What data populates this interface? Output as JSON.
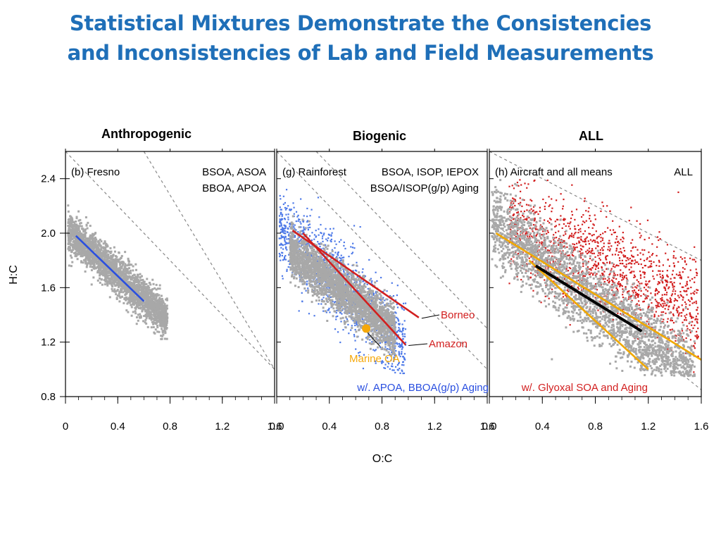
{
  "slide": {
    "title_line1": "Statistical Mixtures Demonstrate the Consistencies",
    "title_line2": "and Inconsistencies of Lab and Field Measurements",
    "title_color": "#1f6fb8"
  },
  "sections": [
    "Anthropogenic",
    "Biogenic",
    "ALL"
  ],
  "axes": {
    "xlabel": "O:C",
    "ylabel": "H:C",
    "xlim": [
      0,
      1.6
    ],
    "ylim": [
      0.8,
      2.6
    ],
    "xticks": [
      0,
      0.4,
      0.8,
      1.2,
      1.6
    ],
    "xtick_labels_b": [
      "0",
      "0.4",
      "0.8",
      "1.2",
      "1.6"
    ],
    "xtick_labels_g": [
      "0.0",
      "0.4",
      "0.8",
      "1.2",
      "1.6"
    ],
    "xtick_labels_h": [
      "0.0",
      "0.4",
      "0.8",
      "1.2",
      "1.6"
    ],
    "yticks": [
      2.4,
      2.0,
      1.6,
      1.2,
      0.8
    ],
    "ytick_labels": [
      "2.4",
      "2.0",
      "1.6",
      "1.2",
      "0.8"
    ]
  },
  "chart_data": [
    {
      "type": "scatter",
      "panel_label": "(b) Fresno",
      "legend_lines": [
        "BSOA, ASOA",
        "BBOA, APOA"
      ],
      "xlim": [
        0,
        1.6
      ],
      "ylim": [
        0.8,
        2.6
      ],
      "reference_lines": [
        {
          "style": "dashed",
          "color": "#888888",
          "x": [
            0,
            1.6
          ],
          "y": [
            2.6,
            1.0
          ]
        },
        {
          "style": "dashed",
          "color": "#888888",
          "x": [
            0.6,
            1.6
          ],
          "y": [
            2.6,
            1.0
          ]
        }
      ],
      "fit_lines": [
        {
          "color": "#2a4fe0",
          "x": [
            0.08,
            0.6
          ],
          "y": [
            1.98,
            1.5
          ]
        }
      ],
      "clouds": [
        {
          "name": "",
          "color": "#a8a8a8",
          "center_x": 0.4,
          "slope": -0.85,
          "intercept": 2.03,
          "x_range": [
            0.02,
            0.78
          ],
          "spread": 0.07
        }
      ],
      "annotations": []
    },
    {
      "type": "scatter",
      "panel_label": "(g) Rainforest",
      "legend_lines": [
        "BSOA, ISOP, IEPOX",
        "BSOA/ISOP(g/p) Aging"
      ],
      "footnote": "w/. APOA, BBOA(g/p) Aging",
      "footnote_color": "#2a4fe0",
      "xlim": [
        0,
        1.6
      ],
      "ylim": [
        0.8,
        2.6
      ],
      "reference_lines": [
        {
          "style": "dashed",
          "color": "#888888",
          "x": [
            0,
            1.6
          ],
          "y": [
            2.6,
            1.0
          ]
        },
        {
          "style": "dashed",
          "color": "#888888",
          "x": [
            0.3,
            1.6
          ],
          "y": [
            2.6,
            1.3
          ]
        }
      ],
      "fit_lines": [
        {
          "name": "Borneo",
          "color": "#d21f1f",
          "x": [
            0.12,
            1.08
          ],
          "y": [
            2.02,
            1.38
          ]
        },
        {
          "name": "Amazon",
          "color": "#d21f1f",
          "x": [
            0.2,
            0.98
          ],
          "y": [
            2.0,
            1.18
          ]
        }
      ],
      "clouds": [
        {
          "name": "",
          "color": "#4d79e8",
          "center_x": 0.35,
          "slope": -0.9,
          "intercept": 2.05,
          "x_range": [
            0.02,
            0.98
          ],
          "spread": 0.15
        },
        {
          "name": "",
          "color": "#a8a8a8",
          "center_x": 0.45,
          "slope": -0.75,
          "intercept": 1.95,
          "x_range": [
            0.1,
            0.9
          ],
          "spread": 0.09
        }
      ],
      "points": [
        {
          "name": "Marine OA",
          "x": 0.68,
          "y": 1.3,
          "color": "#f5a80a"
        }
      ],
      "annotations": [
        {
          "text": "Borneo",
          "color": "#d21f1f"
        },
        {
          "text": "Amazon",
          "color": "#d21f1f"
        },
        {
          "text": "Marine OA",
          "color": "#f5a80a"
        }
      ]
    },
    {
      "type": "scatter",
      "panel_label": "(h) Aircraft and all means",
      "legend_lines": [
        "ALL"
      ],
      "footnote": "w/. Glyoxal SOA and Aging",
      "footnote_color": "#d21f1f",
      "xlim": [
        0,
        1.6
      ],
      "ylim": [
        0.8,
        2.6
      ],
      "reference_lines": [
        {
          "style": "dashed",
          "color": "#888888",
          "x": [
            0,
            1.6
          ],
          "y": [
            2.6,
            1.8
          ]
        },
        {
          "style": "dashed",
          "color": "#888888",
          "x": [
            0,
            1.6
          ],
          "y": [
            2.1,
            0.85
          ]
        }
      ],
      "fit_lines": [
        {
          "color": "#f0a800",
          "x": [
            0.05,
            1.6
          ],
          "y": [
            2.0,
            1.07
          ]
        },
        {
          "color": "#f0a800",
          "x": [
            0.3,
            1.2
          ],
          "y": [
            1.8,
            1.0
          ]
        },
        {
          "color": "#000000",
          "x": [
            0.35,
            1.15
          ],
          "y": [
            1.76,
            1.28
          ]
        }
      ],
      "clouds": [
        {
          "name": "",
          "color": "#d21f1f",
          "center_x": 1.1,
          "slope": -0.4,
          "intercept": 2.1,
          "x_range": [
            0.15,
            1.58
          ],
          "spread": 0.18
        },
        {
          "name": "",
          "color": "#a8a8a8",
          "center_x": 0.55,
          "slope": -0.75,
          "intercept": 2.1,
          "x_range": [
            0.02,
            1.55
          ],
          "spread": 0.14
        }
      ],
      "annotations": []
    }
  ]
}
